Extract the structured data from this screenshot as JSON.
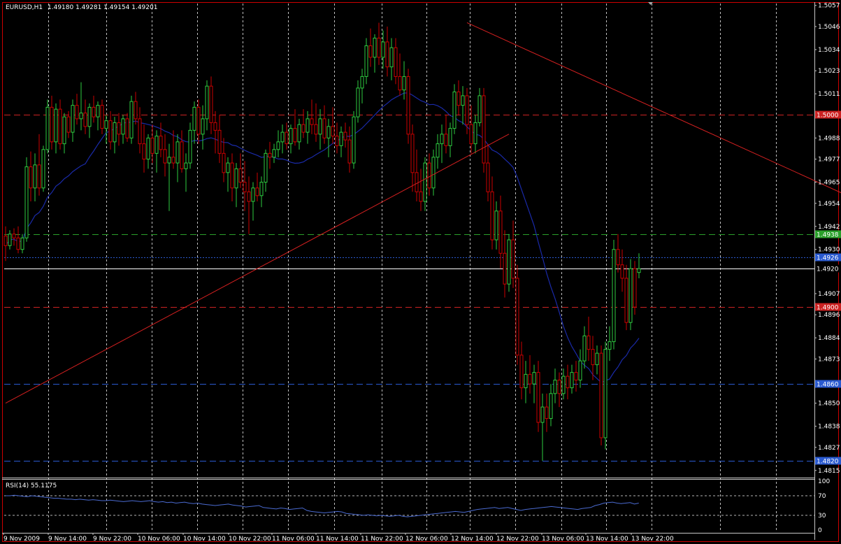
{
  "header": {
    "symbol_tf": "EURUSD,H1",
    "ohlc": "1.49180 1.49281 1.49154 1.49201"
  },
  "rsi_panel": {
    "label": "RSI(14) 55.1175",
    "levels": [
      "100",
      "70",
      "30",
      "0"
    ],
    "values": [
      70,
      70,
      71,
      70,
      69,
      68,
      70,
      69,
      68,
      67,
      66,
      65,
      65,
      64,
      63,
      63,
      62,
      63,
      62,
      61,
      62,
      61,
      60,
      60,
      61,
      60,
      59,
      58,
      59,
      60,
      59,
      58,
      59,
      60,
      58,
      57,
      58,
      56,
      57,
      55,
      56,
      57,
      55,
      54,
      55,
      53,
      52,
      51,
      50,
      51,
      52,
      53,
      51,
      50,
      49,
      47,
      48,
      49,
      50,
      46,
      45,
      44,
      43,
      45,
      44,
      42,
      43,
      44,
      45,
      40,
      38,
      37,
      36,
      35,
      36,
      37,
      38,
      37,
      34,
      33,
      32,
      31,
      30,
      31,
      30,
      29,
      30,
      29,
      28,
      29,
      30,
      28,
      27,
      28,
      29,
      30,
      31,
      32,
      33,
      34,
      35,
      36,
      37,
      38,
      37,
      36,
      38,
      40,
      42,
      43,
      44,
      45,
      46,
      44,
      45,
      46,
      44,
      42,
      40,
      42,
      43,
      44,
      45,
      46,
      47,
      48,
      47,
      46,
      45,
      44,
      43,
      42,
      44,
      45,
      46,
      50,
      52,
      55,
      56,
      57,
      55,
      54,
      55,
      56,
      53,
      55
    ]
  },
  "colors": {
    "bull": "#2ecc40",
    "bear": "#cc0000",
    "ma": "#1a2aa8",
    "trend": "#d42020",
    "res": "#cc2222",
    "green_level": "#2aa02a",
    "blue_level": "#2a5ad0",
    "grid": "#ffffff",
    "frame": "#cc0000",
    "rsi_line": "#4a6ad0"
  },
  "chart_data": {
    "type": "candlestick",
    "title": "EURUSD,H1",
    "ylim": [
      1.4812,
      1.5058
    ],
    "y_ticks": [
      "1.5057",
      "1.5046",
      "1.5034",
      "1.5023",
      "1.5011",
      "1.4988",
      "1.4977",
      "1.4965",
      "1.4954",
      "1.4942",
      "1.4930",
      "1.4907",
      "1.4896",
      "1.4884",
      "1.4873",
      "1.4850",
      "1.4838",
      "1.4827",
      "1.4815"
    ],
    "x_ticks": [
      "9 Nov 2009",
      "9 Nov 14:00",
      "9 Nov 22:00",
      "10 Nov 06:00",
      "10 Nov 14:00",
      "10 Nov 22:00",
      "11 Nov 06:00",
      "11 Nov 14:00",
      "11 Nov 22:00",
      "12 Nov 06:00",
      "12 Nov 14:00",
      "12 Nov 22:00",
      "13 Nov 06:00",
      "13 Nov 14:00",
      "13 Nov 22:00"
    ],
    "horizontal_levels": [
      {
        "value": 1.5,
        "label": "1.5000",
        "color": "#cc2222",
        "style": "dashed"
      },
      {
        "value": 1.4938,
        "label": "1.4938",
        "color": "#2aa02a",
        "style": "dashed"
      },
      {
        "value": 1.4926,
        "label": "1.4926",
        "color": "#2a5ad0",
        "style": "dotted"
      },
      {
        "value": 1.492,
        "label": "1.4920",
        "color": "#ffffff",
        "style": "solid"
      },
      {
        "value": 1.49,
        "label": "1.4900",
        "color": "#cc2222",
        "style": "dashed"
      },
      {
        "value": 1.486,
        "label": "1.4860",
        "color": "#2a5ad0",
        "style": "dashed"
      },
      {
        "value": 1.482,
        "label": "1.4820",
        "color": "#2a5ad0",
        "style": "dashed"
      }
    ],
    "trendlines": [
      {
        "from": [
          0,
          1.485
        ],
        "to": [
          120,
          1.499
        ]
      },
      {
        "from": [
          110,
          1.5048
        ],
        "to": [
          236,
          1.4923
        ]
      }
    ],
    "candles": [
      {
        "o": 1.4937,
        "h": 1.4942,
        "l": 1.4924,
        "c": 1.4932
      },
      {
        "o": 1.4932,
        "h": 1.494,
        "l": 1.493,
        "c": 1.4938
      },
      {
        "o": 1.4938,
        "h": 1.4941,
        "l": 1.4932,
        "c": 1.4936
      },
      {
        "o": 1.4936,
        "h": 1.4942,
        "l": 1.4928,
        "c": 1.493
      },
      {
        "o": 1.493,
        "h": 1.4938,
        "l": 1.4928,
        "c": 1.4936
      },
      {
        "o": 1.4936,
        "h": 1.4978,
        "l": 1.4934,
        "c": 1.4973
      },
      {
        "o": 1.4973,
        "h": 1.4981,
        "l": 1.4955,
        "c": 1.4962
      },
      {
        "o": 1.4962,
        "h": 1.498,
        "l": 1.4955,
        "c": 1.4974
      },
      {
        "o": 1.4974,
        "h": 1.499,
        "l": 1.4958,
        "c": 1.4962
      },
      {
        "o": 1.4962,
        "h": 1.4984,
        "l": 1.496,
        "c": 1.4982
      },
      {
        "o": 1.4982,
        "h": 1.5008,
        "l": 1.498,
        "c": 1.5004
      },
      {
        "o": 1.5004,
        "h": 1.501,
        "l": 1.4982,
        "c": 1.4986
      },
      {
        "o": 1.4986,
        "h": 1.5006,
        "l": 1.498,
        "c": 1.5003
      },
      {
        "o": 1.5003,
        "h": 1.5008,
        "l": 1.4982,
        "c": 1.4985
      },
      {
        "o": 1.4985,
        "h": 1.5001,
        "l": 1.498,
        "c": 1.4999
      },
      {
        "o": 1.4999,
        "h": 1.5002,
        "l": 1.4988,
        "c": 1.4991
      },
      {
        "o": 1.4991,
        "h": 1.5008,
        "l": 1.4986,
        "c": 1.5005
      },
      {
        "o": 1.5005,
        "h": 1.5011,
        "l": 1.4995,
        "c": 1.4998
      },
      {
        "o": 1.4998,
        "h": 1.5017,
        "l": 1.4992,
        "c": 1.5001
      },
      {
        "o": 1.5001,
        "h": 1.5008,
        "l": 1.499,
        "c": 1.4994
      },
      {
        "o": 1.4994,
        "h": 1.5006,
        "l": 1.4988,
        "c": 1.5004
      },
      {
        "o": 1.5004,
        "h": 1.501,
        "l": 1.4996,
        "c": 1.4999
      },
      {
        "o": 1.4999,
        "h": 1.5007,
        "l": 1.4992,
        "c": 1.5005
      },
      {
        "o": 1.5005,
        "h": 1.5008,
        "l": 1.499,
        "c": 1.4993
      },
      {
        "o": 1.4993,
        "h": 1.5,
        "l": 1.4985,
        "c": 1.4997
      },
      {
        "o": 1.4997,
        "h": 1.5002,
        "l": 1.4982,
        "c": 1.4986
      },
      {
        "o": 1.4986,
        "h": 1.4999,
        "l": 1.498,
        "c": 1.4996
      },
      {
        "o": 1.4996,
        "h": 1.5001,
        "l": 1.4984,
        "c": 1.499
      },
      {
        "o": 1.499,
        "h": 1.5,
        "l": 1.4985,
        "c": 1.4998
      },
      {
        "o": 1.4998,
        "h": 1.5001,
        "l": 1.4986,
        "c": 1.4988
      },
      {
        "o": 1.4988,
        "h": 1.501,
        "l": 1.4985,
        "c": 1.5007
      },
      {
        "o": 1.5007,
        "h": 1.5012,
        "l": 1.4995,
        "c": 1.4998
      },
      {
        "o": 1.4998,
        "h": 1.5004,
        "l": 1.498,
        "c": 1.4985
      },
      {
        "o": 1.4985,
        "h": 1.4995,
        "l": 1.497,
        "c": 1.4977
      },
      {
        "o": 1.4977,
        "h": 1.499,
        "l": 1.4972,
        "c": 1.4988
      },
      {
        "o": 1.4988,
        "h": 1.4995,
        "l": 1.4975,
        "c": 1.498
      },
      {
        "o": 1.498,
        "h": 1.4992,
        "l": 1.497,
        "c": 1.4989
      },
      {
        "o": 1.4989,
        "h": 1.4996,
        "l": 1.4978,
        "c": 1.4982
      },
      {
        "o": 1.4982,
        "h": 1.499,
        "l": 1.4968,
        "c": 1.4975
      },
      {
        "o": 1.4975,
        "h": 1.4985,
        "l": 1.495,
        "c": 1.4978
      },
      {
        "o": 1.4978,
        "h": 1.4992,
        "l": 1.4972,
        "c": 1.4975
      },
      {
        "o": 1.4975,
        "h": 1.499,
        "l": 1.4965,
        "c": 1.4986
      },
      {
        "o": 1.4986,
        "h": 1.4992,
        "l": 1.497,
        "c": 1.4972
      },
      {
        "o": 1.4972,
        "h": 1.498,
        "l": 1.496,
        "c": 1.4975
      },
      {
        "o": 1.4975,
        "h": 1.4996,
        "l": 1.4972,
        "c": 1.4992
      },
      {
        "o": 1.4992,
        "h": 1.5007,
        "l": 1.4985,
        "c": 1.5004
      },
      {
        "o": 1.5004,
        "h": 1.5008,
        "l": 1.4985,
        "c": 1.499
      },
      {
        "o": 1.499,
        "h": 1.5005,
        "l": 1.4982,
        "c": 1.4998
      },
      {
        "o": 1.4998,
        "h": 1.5018,
        "l": 1.4992,
        "c": 1.5015
      },
      {
        "o": 1.5015,
        "h": 1.502,
        "l": 1.499,
        "c": 1.4996
      },
      {
        "o": 1.4996,
        "h": 1.5002,
        "l": 1.498,
        "c": 1.4992
      },
      {
        "o": 1.4992,
        "h": 1.5,
        "l": 1.4975,
        "c": 1.498
      },
      {
        "o": 1.498,
        "h": 1.4988,
        "l": 1.4965,
        "c": 1.497
      },
      {
        "o": 1.497,
        "h": 1.4978,
        "l": 1.496,
        "c": 1.4975
      },
      {
        "o": 1.4975,
        "h": 1.498,
        "l": 1.4955,
        "c": 1.4962
      },
      {
        "o": 1.4962,
        "h": 1.4975,
        "l": 1.4952,
        "c": 1.4972
      },
      {
        "o": 1.4972,
        "h": 1.498,
        "l": 1.4962,
        "c": 1.4965
      },
      {
        "o": 1.4965,
        "h": 1.4976,
        "l": 1.495,
        "c": 1.496
      },
      {
        "o": 1.496,
        "h": 1.4968,
        "l": 1.4938,
        "c": 1.4955
      },
      {
        "o": 1.4955,
        "h": 1.4965,
        "l": 1.4945,
        "c": 1.4962
      },
      {
        "o": 1.4962,
        "h": 1.497,
        "l": 1.4955,
        "c": 1.4958
      },
      {
        "o": 1.4958,
        "h": 1.4968,
        "l": 1.4952,
        "c": 1.4965
      },
      {
        "o": 1.4965,
        "h": 1.4982,
        "l": 1.496,
        "c": 1.498
      },
      {
        "o": 1.498,
        "h": 1.4986,
        "l": 1.4972,
        "c": 1.4978
      },
      {
        "o": 1.4978,
        "h": 1.4985,
        "l": 1.4975,
        "c": 1.4982
      },
      {
        "o": 1.4982,
        "h": 1.4992,
        "l": 1.4978,
        "c": 1.4986
      },
      {
        "o": 1.4986,
        "h": 1.4995,
        "l": 1.498,
        "c": 1.4991
      },
      {
        "o": 1.4991,
        "h": 1.4996,
        "l": 1.4982,
        "c": 1.4985
      },
      {
        "o": 1.4985,
        "h": 1.4995,
        "l": 1.498,
        "c": 1.4993
      },
      {
        "o": 1.4993,
        "h": 1.5003,
        "l": 1.4984,
        "c": 1.4986
      },
      {
        "o": 1.4986,
        "h": 1.4998,
        "l": 1.4982,
        "c": 1.4995
      },
      {
        "o": 1.4995,
        "h": 1.5003,
        "l": 1.4988,
        "c": 1.4991
      },
      {
        "o": 1.4991,
        "h": 1.5002,
        "l": 1.4985,
        "c": 1.4998
      },
      {
        "o": 1.4998,
        "h": 1.5008,
        "l": 1.499,
        "c": 1.4995
      },
      {
        "o": 1.4995,
        "h": 1.5006,
        "l": 1.4986,
        "c": 1.499
      },
      {
        "o": 1.499,
        "h": 1.5003,
        "l": 1.4982,
        "c": 1.4998
      },
      {
        "o": 1.4998,
        "h": 1.5005,
        "l": 1.4985,
        "c": 1.4988
      },
      {
        "o": 1.4988,
        "h": 1.4998,
        "l": 1.4978,
        "c": 1.4994
      },
      {
        "o": 1.4994,
        "h": 1.5004,
        "l": 1.4985,
        "c": 1.4989
      },
      {
        "o": 1.4989,
        "h": 1.4996,
        "l": 1.498,
        "c": 1.4984
      },
      {
        "o": 1.4984,
        "h": 1.4994,
        "l": 1.4978,
        "c": 1.4991
      },
      {
        "o": 1.4991,
        "h": 1.4996,
        "l": 1.4983,
        "c": 1.4987
      },
      {
        "o": 1.4987,
        "h": 1.4994,
        "l": 1.497,
        "c": 1.4975
      },
      {
        "o": 1.4975,
        "h": 1.5002,
        "l": 1.4972,
        "c": 1.4999
      },
      {
        "o": 1.4999,
        "h": 1.5018,
        "l": 1.4996,
        "c": 1.5014
      },
      {
        "o": 1.5014,
        "h": 1.5024,
        "l": 1.5006,
        "c": 1.502
      },
      {
        "o": 1.502,
        "h": 1.504,
        "l": 1.5016,
        "c": 1.5036
      },
      {
        "o": 1.5036,
        "h": 1.5045,
        "l": 1.5025,
        "c": 1.503
      },
      {
        "o": 1.503,
        "h": 1.5042,
        "l": 1.5022,
        "c": 1.504
      },
      {
        "o": 1.504,
        "h": 1.5048,
        "l": 1.5026,
        "c": 1.503
      },
      {
        "o": 1.503,
        "h": 1.5044,
        "l": 1.5024,
        "c": 1.5038
      },
      {
        "o": 1.5038,
        "h": 1.5046,
        "l": 1.502,
        "c": 1.5025
      },
      {
        "o": 1.5025,
        "h": 1.504,
        "l": 1.5018,
        "c": 1.5035
      },
      {
        "o": 1.5035,
        "h": 1.504,
        "l": 1.5016,
        "c": 1.502
      },
      {
        "o": 1.502,
        "h": 1.5032,
        "l": 1.501,
        "c": 1.5013
      },
      {
        "o": 1.5013,
        "h": 1.5028,
        "l": 1.5008,
        "c": 1.502
      },
      {
        "o": 1.502,
        "h": 1.5024,
        "l": 1.4985,
        "c": 1.499
      },
      {
        "o": 1.499,
        "h": 1.4995,
        "l": 1.496,
        "c": 1.497
      },
      {
        "o": 1.497,
        "h": 1.4982,
        "l": 1.4955,
        "c": 1.496
      },
      {
        "o": 1.496,
        "h": 1.4972,
        "l": 1.495,
        "c": 1.4955
      },
      {
        "o": 1.4955,
        "h": 1.4978,
        "l": 1.495,
        "c": 1.4975
      },
      {
        "o": 1.4975,
        "h": 1.498,
        "l": 1.4958,
        "c": 1.4962
      },
      {
        "o": 1.4962,
        "h": 1.4982,
        "l": 1.4958,
        "c": 1.4978
      },
      {
        "o": 1.4978,
        "h": 1.499,
        "l": 1.4972,
        "c": 1.4985
      },
      {
        "o": 1.4985,
        "h": 1.4995,
        "l": 1.4975,
        "c": 1.499
      },
      {
        "o": 1.499,
        "h": 1.5,
        "l": 1.498,
        "c": 1.4984
      },
      {
        "o": 1.4984,
        "h": 1.4996,
        "l": 1.4978,
        "c": 1.4993
      },
      {
        "o": 1.4993,
        "h": 1.5016,
        "l": 1.499,
        "c": 1.5012
      },
      {
        "o": 1.5012,
        "h": 1.5018,
        "l": 1.5,
        "c": 1.5005
      },
      {
        "o": 1.5005,
        "h": 1.5015,
        "l": 1.4995,
        "c": 1.501
      },
      {
        "o": 1.501,
        "h": 1.5014,
        "l": 1.499,
        "c": 1.4995
      },
      {
        "o": 1.4995,
        "h": 1.5005,
        "l": 1.498,
        "c": 1.4985
      },
      {
        "o": 1.4985,
        "h": 1.5,
        "l": 1.498,
        "c": 1.4996
      },
      {
        "o": 1.4996,
        "h": 1.5014,
        "l": 1.4994,
        "c": 1.501
      },
      {
        "o": 1.501,
        "h": 1.5014,
        "l": 1.497,
        "c": 1.4975
      },
      {
        "o": 1.4975,
        "h": 1.4985,
        "l": 1.4955,
        "c": 1.496
      },
      {
        "o": 1.496,
        "h": 1.4968,
        "l": 1.493,
        "c": 1.4935
      },
      {
        "o": 1.4935,
        "h": 1.4955,
        "l": 1.493,
        "c": 1.495
      },
      {
        "o": 1.495,
        "h": 1.4958,
        "l": 1.492,
        "c": 1.4928
      },
      {
        "o": 1.4928,
        "h": 1.494,
        "l": 1.4905,
        "c": 1.4912
      },
      {
        "o": 1.4912,
        "h": 1.4938,
        "l": 1.4908,
        "c": 1.4935
      },
      {
        "o": 1.4935,
        "h": 1.4945,
        "l": 1.491,
        "c": 1.4915
      },
      {
        "o": 1.4915,
        "h": 1.4922,
        "l": 1.487,
        "c": 1.4875
      },
      {
        "o": 1.4875,
        "h": 1.4882,
        "l": 1.4852,
        "c": 1.4858
      },
      {
        "o": 1.4858,
        "h": 1.4872,
        "l": 1.485,
        "c": 1.4865
      },
      {
        "o": 1.4865,
        "h": 1.4875,
        "l": 1.4855,
        "c": 1.486
      },
      {
        "o": 1.486,
        "h": 1.487,
        "l": 1.485,
        "c": 1.4866
      },
      {
        "o": 1.4866,
        "h": 1.4872,
        "l": 1.4835,
        "c": 1.484
      },
      {
        "o": 1.484,
        "h": 1.4855,
        "l": 1.482,
        "c": 1.4848
      },
      {
        "o": 1.4848,
        "h": 1.4855,
        "l": 1.4835,
        "c": 1.4842
      },
      {
        "o": 1.4842,
        "h": 1.486,
        "l": 1.4838,
        "c": 1.4855
      },
      {
        "o": 1.4855,
        "h": 1.4868,
        "l": 1.485,
        "c": 1.4862
      },
      {
        "o": 1.4862,
        "h": 1.4866,
        "l": 1.4848,
        "c": 1.4855
      },
      {
        "o": 1.4855,
        "h": 1.4868,
        "l": 1.4852,
        "c": 1.4864
      },
      {
        "o": 1.4864,
        "h": 1.487,
        "l": 1.4852,
        "c": 1.4858
      },
      {
        "o": 1.4858,
        "h": 1.487,
        "l": 1.4855,
        "c": 1.4866
      },
      {
        "o": 1.4866,
        "h": 1.4872,
        "l": 1.4856,
        "c": 1.4862
      },
      {
        "o": 1.4862,
        "h": 1.4878,
        "l": 1.4858,
        "c": 1.4872
      },
      {
        "o": 1.4872,
        "h": 1.489,
        "l": 1.4868,
        "c": 1.4885
      },
      {
        "o": 1.4885,
        "h": 1.4895,
        "l": 1.4872,
        "c": 1.4878
      },
      {
        "o": 1.4878,
        "h": 1.4885,
        "l": 1.4862,
        "c": 1.487
      },
      {
        "o": 1.487,
        "h": 1.488,
        "l": 1.4865,
        "c": 1.4876
      },
      {
        "o": 1.4876,
        "h": 1.488,
        "l": 1.4828,
        "c": 1.4832
      },
      {
        "o": 1.4832,
        "h": 1.4882,
        "l": 1.4826,
        "c": 1.4878
      },
      {
        "o": 1.4878,
        "h": 1.489,
        "l": 1.4872,
        "c": 1.4882
      },
      {
        "o": 1.4882,
        "h": 1.4935,
        "l": 1.4878,
        "c": 1.493
      },
      {
        "o": 1.493,
        "h": 1.4938,
        "l": 1.4918,
        "c": 1.4922
      },
      {
        "o": 1.4922,
        "h": 1.493,
        "l": 1.4908,
        "c": 1.4915
      },
      {
        "o": 1.4915,
        "h": 1.4922,
        "l": 1.4888,
        "c": 1.4892
      },
      {
        "o": 1.4892,
        "h": 1.4925,
        "l": 1.4888,
        "c": 1.492
      },
      {
        "o": 1.492,
        "h": 1.4924,
        "l": 1.4896,
        "c": 1.49
      },
      {
        "o": 1.4918,
        "h": 1.4928,
        "l": 1.4915,
        "c": 1.492
      }
    ]
  }
}
